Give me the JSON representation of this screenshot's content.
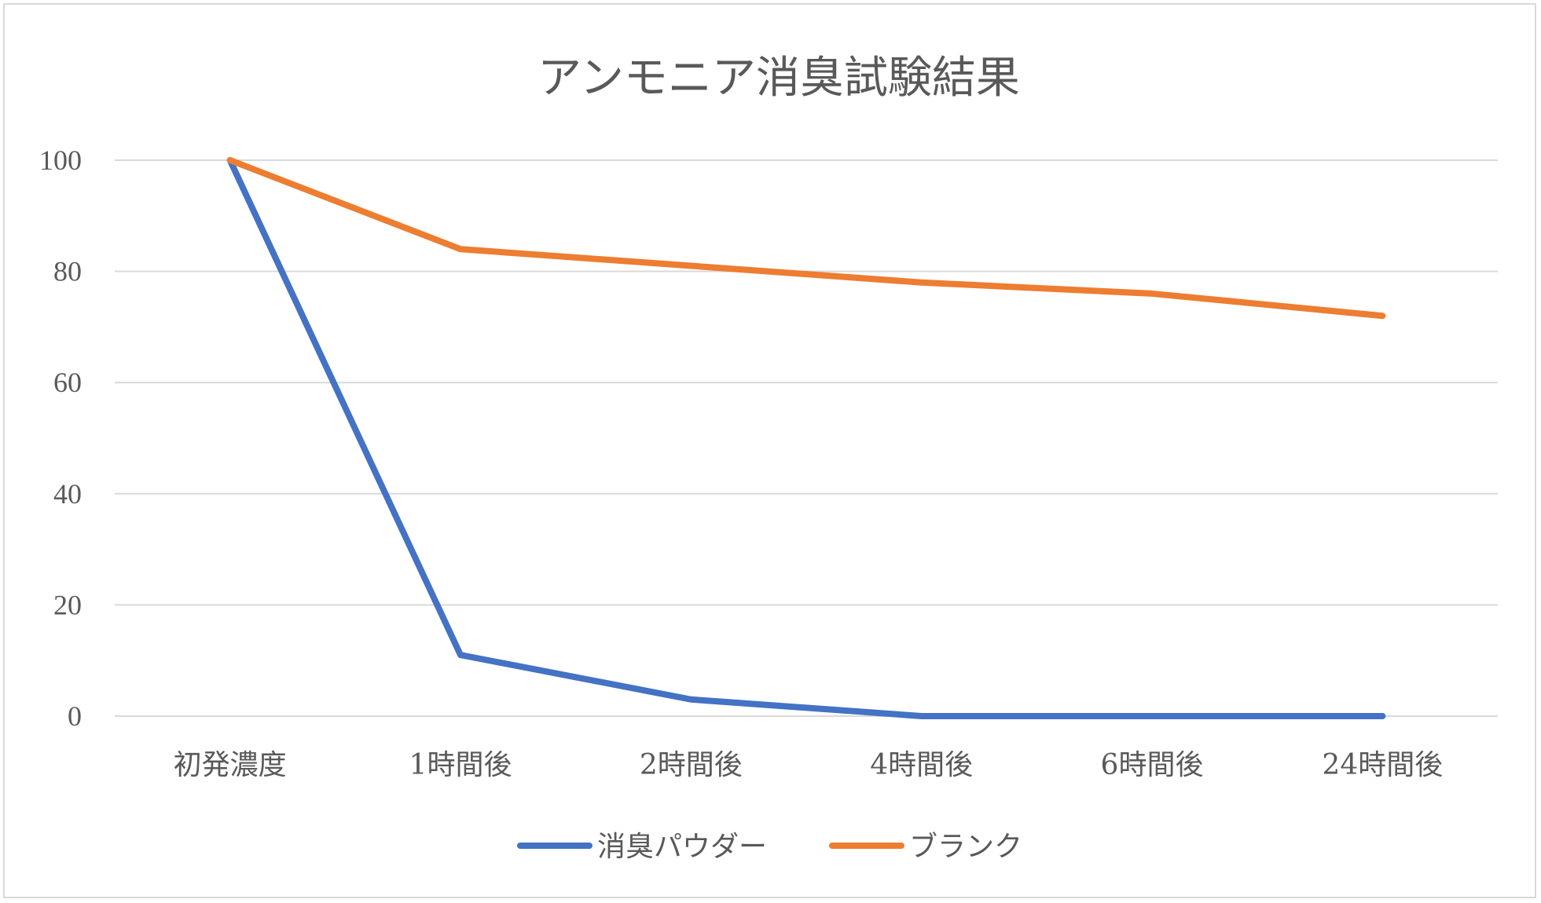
{
  "chart_data": {
    "type": "line",
    "title": "アンモニア消臭試験結果",
    "xlabel": "",
    "ylabel": "",
    "categories": [
      "初発濃度",
      "1時間後",
      "2時間後",
      "4時間後",
      "6時間後",
      "24時間後"
    ],
    "ylim": [
      0,
      100
    ],
    "yticks": [
      0,
      20,
      40,
      60,
      80,
      100
    ],
    "grid": true,
    "legend_position": "bottom",
    "series": [
      {
        "name": "消臭パウダー",
        "color": "#4472C4",
        "values": [
          100,
          11,
          3,
          0,
          0,
          0
        ]
      },
      {
        "name": "ブランク",
        "color": "#ED7D31",
        "values": [
          100,
          84,
          81,
          78,
          76,
          72
        ]
      }
    ]
  }
}
